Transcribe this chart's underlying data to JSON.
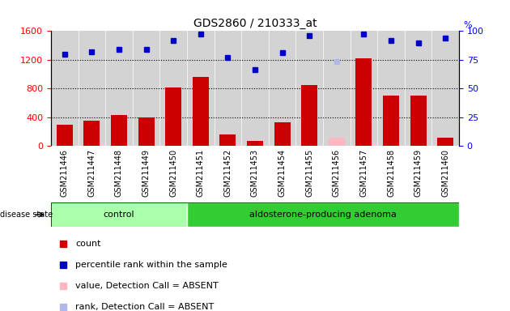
{
  "title": "GDS2860 / 210333_at",
  "samples": [
    "GSM211446",
    "GSM211447",
    "GSM211448",
    "GSM211449",
    "GSM211450",
    "GSM211451",
    "GSM211452",
    "GSM211453",
    "GSM211454",
    "GSM211455",
    "GSM211456",
    "GSM211457",
    "GSM211458",
    "GSM211459",
    "GSM211460"
  ],
  "counts": [
    300,
    360,
    430,
    400,
    820,
    960,
    160,
    70,
    330,
    850,
    0,
    1220,
    700,
    700,
    120
  ],
  "absent_value_counts": [
    0,
    0,
    0,
    0,
    0,
    0,
    0,
    0,
    0,
    0,
    120,
    0,
    0,
    0,
    0
  ],
  "ranks": [
    1280,
    1310,
    1340,
    1340,
    1470,
    1560,
    1230,
    1060,
    1300,
    1540,
    0,
    1560,
    1470,
    1440,
    1500
  ],
  "absent_ranks": [
    0,
    0,
    0,
    0,
    0,
    0,
    0,
    0,
    0,
    0,
    1180,
    0,
    0,
    0,
    0
  ],
  "control_count": 5,
  "adenoma_count": 10,
  "ylim_left": [
    0,
    1600
  ],
  "ylim_right": [
    0,
    100
  ],
  "left_ticks": [
    0,
    400,
    800,
    1200,
    1600
  ],
  "right_ticks": [
    0,
    25,
    50,
    75,
    100
  ],
  "bar_color": "#cc0000",
  "absent_bar_color": "#ffb6c1",
  "rank_color": "#0000cc",
  "absent_rank_color": "#b0b8e8",
  "control_bg": "#aaffaa",
  "adenoma_bg": "#33cc33",
  "sample_area_bg": "#d3d3d3",
  "legend_items": [
    {
      "label": "count",
      "color": "#cc0000"
    },
    {
      "label": "percentile rank within the sample",
      "color": "#0000cc"
    },
    {
      "label": "value, Detection Call = ABSENT",
      "color": "#ffb6c1"
    },
    {
      "label": "rank, Detection Call = ABSENT",
      "color": "#b0b8e8"
    }
  ]
}
